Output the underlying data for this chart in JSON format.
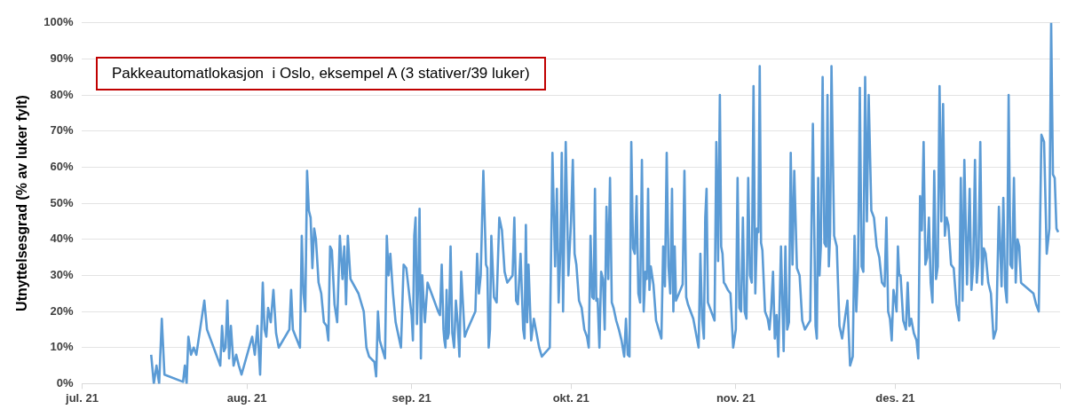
{
  "chart_data": {
    "type": "line",
    "ylabel": "Utnyttelsesgrad (% av luker fylt)",
    "annotations": [
      "Pakkeautomatlokasjon  i Oslo, eksempel A (3 stativer/39 luker)"
    ],
    "xlim": [
      "2021-07-01",
      "2022-01-01"
    ],
    "xticks": [
      {
        "value": "2021-07-01",
        "label": "jul. 21"
      },
      {
        "value": "2021-08-01",
        "label": "aug. 21"
      },
      {
        "value": "2021-09-01",
        "label": "sep. 21"
      },
      {
        "value": "2021-10-01",
        "label": "okt. 21"
      },
      {
        "value": "2021-11-01",
        "label": "nov. 21"
      },
      {
        "value": "2021-12-01",
        "label": "des. 21"
      },
      {
        "value": "2022-01-01",
        "label": null
      }
    ],
    "ylim": [
      0,
      100
    ],
    "yticks": [
      {
        "value": 0,
        "label": "0%"
      },
      {
        "value": 10,
        "label": "10%"
      },
      {
        "value": 20,
        "label": "20%"
      },
      {
        "value": 30,
        "label": "30%"
      },
      {
        "value": 40,
        "label": "40%"
      },
      {
        "value": 50,
        "label": "50%"
      },
      {
        "value": 60,
        "label": "60%"
      },
      {
        "value": 70,
        "label": "70%"
      },
      {
        "value": 80,
        "label": "80%"
      },
      {
        "value": 90,
        "label": "90%"
      },
      {
        "value": 100,
        "label": "100%"
      }
    ],
    "grid": "y",
    "line_style": "solid",
    "x": [
      "2021-07-14T00:00",
      "2021-07-14T12:00",
      "2021-07-15T00:00",
      "2021-07-15T12:00",
      "2021-07-16T00:00",
      "2021-07-16T12:00",
      "2021-07-20T00:00",
      "2021-07-20T08:00",
      "2021-07-20T16:00",
      "2021-07-21T00:00",
      "2021-07-21T12:00",
      "2021-07-22T00:00",
      "2021-07-22T12:00",
      "2021-07-24T00:00",
      "2021-07-24T12:00",
      "2021-07-27T00:00",
      "2021-07-27T08:00",
      "2021-07-27T16:00",
      "2021-07-28T00:00",
      "2021-07-28T08:00",
      "2021-07-28T16:00",
      "2021-07-29T00:00",
      "2021-07-29T12:00",
      "2021-07-30T00:00",
      "2021-07-30T12:00",
      "2021-07-31T00:00",
      "2021-08-02T00:00",
      "2021-08-02T12:00",
      "2021-08-03T00:00",
      "2021-08-03T12:00",
      "2021-08-04T00:00",
      "2021-08-04T08:00",
      "2021-08-04T16:00",
      "2021-08-05T00:00",
      "2021-08-05T12:00",
      "2021-08-06T00:00",
      "2021-08-06T12:00",
      "2021-08-07T00:00",
      "2021-08-09T00:00",
      "2021-08-09T08:00",
      "2021-08-09T16:00",
      "2021-08-11T00:00",
      "2021-08-11T08:00",
      "2021-08-11T16:00",
      "2021-08-12T00:00",
      "2021-08-12T08:00",
      "2021-08-12T16:00",
      "2021-08-13T00:00",
      "2021-08-13T08:00",
      "2021-08-13T16:00",
      "2021-08-14T00:00",
      "2021-08-14T12:00",
      "2021-08-15T00:00",
      "2021-08-15T12:00",
      "2021-08-16T00:00",
      "2021-08-16T08:00",
      "2021-08-16T16:00",
      "2021-08-17T00:00",
      "2021-08-17T12:00",
      "2021-08-18T00:00",
      "2021-08-18T12:00",
      "2021-08-19T00:00",
      "2021-08-19T08:00",
      "2021-08-19T16:00",
      "2021-08-20T00:00",
      "2021-08-20T12:00",
      "2021-08-22T00:00",
      "2021-08-23T00:00",
      "2021-08-23T12:00",
      "2021-08-24T00:00",
      "2021-08-25T00:00",
      "2021-08-25T08:00",
      "2021-08-25T16:00",
      "2021-08-26T00:00",
      "2021-08-27T00:00",
      "2021-08-27T08:00",
      "2021-08-27T16:00",
      "2021-08-28T00:00",
      "2021-08-28T12:00",
      "2021-08-29T00:00",
      "2021-08-30T00:00",
      "2021-08-30T12:00",
      "2021-08-31T00:00",
      "2021-09-01T00:00",
      "2021-09-01T06:00",
      "2021-09-01T12:00",
      "2021-09-01T18:00",
      "2021-09-02T00:00",
      "2021-09-02T06:00",
      "2021-09-02T12:00",
      "2021-09-02T18:00",
      "2021-09-03T00:00",
      "2021-09-03T12:00",
      "2021-09-04T00:00",
      "2021-09-06T00:00",
      "2021-09-06T08:00",
      "2021-09-06T16:00",
      "2021-09-07T00:00",
      "2021-09-07T04:00",
      "2021-09-07T09:00",
      "2021-09-07T14:00",
      "2021-09-07T19:00",
      "2021-09-08T00:00",
      "2021-09-08T08:00",
      "2021-09-08T16:00",
      "2021-09-09T00:00",
      "2021-09-09T08:00",
      "2021-09-09T16:00",
      "2021-09-10T00:00",
      "2021-09-10T08:00",
      "2021-09-10T16:00",
      "2021-09-11T00:00",
      "2021-09-11T12:00",
      "2021-09-13T00:00",
      "2021-09-13T08:00",
      "2021-09-13T16:00",
      "2021-09-14T00:00",
      "2021-09-14T12:00",
      "2021-09-15T00:00",
      "2021-09-15T06:00",
      "2021-09-15T12:00",
      "2021-09-15T18:00",
      "2021-09-16T00:00",
      "2021-09-16T12:00",
      "2021-09-17T00:00",
      "2021-09-17T12:00",
      "2021-09-18T00:00",
      "2021-09-18T12:00",
      "2021-09-19T00:00",
      "2021-09-20T00:00",
      "2021-09-20T08:00",
      "2021-09-20T16:00",
      "2021-09-21T00:00",
      "2021-09-21T12:00",
      "2021-09-22T00:00",
      "2021-09-22T06:00",
      "2021-09-22T12:00",
      "2021-09-22T18:00",
      "2021-09-23T00:00",
      "2021-09-23T12:00",
      "2021-09-24T00:00",
      "2021-09-25T00:00",
      "2021-09-25T12:00",
      "2021-09-27T00:00",
      "2021-09-27T12:00",
      "2021-09-28T00:00",
      "2021-09-28T08:00",
      "2021-09-28T16:00",
      "2021-09-29T00:00",
      "2021-09-29T06:00",
      "2021-09-29T12:00",
      "2021-09-29T18:00",
      "2021-09-30T00:00",
      "2021-09-30T12:00",
      "2021-10-01T00:00",
      "2021-10-01T08:00",
      "2021-10-01T16:00",
      "2021-10-02T00:00",
      "2021-10-02T12:00",
      "2021-10-03T00:00",
      "2021-10-03T12:00",
      "2021-10-04T00:00",
      "2021-10-04T08:00",
      "2021-10-04T16:00",
      "2021-10-05T00:00",
      "2021-10-05T06:00",
      "2021-10-05T12:00",
      "2021-10-05T18:00",
      "2021-10-06T00:00",
      "2021-10-06T08:00",
      "2021-10-06T16:00",
      "2021-10-07T00:00",
      "2021-10-07T08:00",
      "2021-10-07T16:00",
      "2021-10-08T00:00",
      "2021-10-08T08:00",
      "2021-10-08T16:00",
      "2021-10-09T00:00",
      "2021-10-09T12:00",
      "2021-10-10T00:00",
      "2021-10-10T12:00",
      "2021-10-11T00:00",
      "2021-10-11T08:00",
      "2021-10-11T16:00",
      "2021-10-12T00:00",
      "2021-10-12T08:00",
      "2021-10-12T16:00",
      "2021-10-13T00:00",
      "2021-10-13T08:00",
      "2021-10-13T16:00",
      "2021-10-14T00:00",
      "2021-10-14T08:00",
      "2021-10-14T16:00",
      "2021-10-15T00:00",
      "2021-10-15T06:00",
      "2021-10-15T12:00",
      "2021-10-15T18:00",
      "2021-10-16T00:00",
      "2021-10-16T12:00",
      "2021-10-17T00:00",
      "2021-10-18T00:00",
      "2021-10-18T08:00",
      "2021-10-18T16:00",
      "2021-10-19T00:00",
      "2021-10-19T08:00",
      "2021-10-19T16:00",
      "2021-10-20T00:00",
      "2021-10-20T06:00",
      "2021-10-20T12:00",
      "2021-10-20T18:00",
      "2021-10-22T00:00",
      "2021-10-22T08:00",
      "2021-10-22T16:00",
      "2021-10-23T00:00",
      "2021-10-24T00:00",
      "2021-10-25T00:00",
      "2021-10-25T08:00",
      "2021-10-25T16:00",
      "2021-10-26T00:00",
      "2021-10-26T06:00",
      "2021-10-26T12:00",
      "2021-10-26T18:00",
      "2021-10-28T00:00",
      "2021-10-28T08:00",
      "2021-10-28T16:00",
      "2021-10-29T00:00",
      "2021-10-29T06:00",
      "2021-10-29T12:00",
      "2021-10-29T18:00",
      "2021-10-30T00:00",
      "2021-10-30T12:00",
      "2021-10-31T00:00",
      "2021-10-31T12:00",
      "2021-11-01T00:00",
      "2021-11-01T08:00",
      "2021-11-01T16:00",
      "2021-11-02T00:00",
      "2021-11-02T08:00",
      "2021-11-02T16:00",
      "2021-11-03T00:00",
      "2021-11-03T08:00",
      "2021-11-03T16:00",
      "2021-11-04T00:00",
      "2021-11-04T08:00",
      "2021-11-04T16:00",
      "2021-11-05T00:00",
      "2021-11-05T06:00",
      "2021-11-05T12:00",
      "2021-11-05T18:00",
      "2021-11-06T00:00",
      "2021-11-06T12:00",
      "2021-11-07T00:00",
      "2021-11-07T08:00",
      "2021-11-07T16:00",
      "2021-11-08T00:00",
      "2021-11-08T08:00",
      "2021-11-08T16:00",
      "2021-11-09T00:00",
      "2021-11-09T12:00",
      "2021-11-10T00:00",
      "2021-11-10T08:00",
      "2021-11-10T16:00",
      "2021-11-11T00:00",
      "2021-11-11T08:00",
      "2021-11-11T16:00",
      "2021-11-12T00:00",
      "2021-11-12T12:00",
      "2021-11-13T00:00",
      "2021-11-13T12:00",
      "2021-11-14T00:00",
      "2021-11-15T00:00",
      "2021-11-15T12:00",
      "2021-11-16T00:00",
      "2021-11-16T06:00",
      "2021-11-16T12:00",
      "2021-11-16T18:00",
      "2021-11-17T00:00",
      "2021-11-17T08:00",
      "2021-11-17T16:00",
      "2021-11-18T00:00",
      "2021-11-18T06:00",
      "2021-11-18T12:00",
      "2021-11-18T18:00",
      "2021-11-19T00:00",
      "2021-11-19T12:00",
      "2021-11-20T00:00",
      "2021-11-20T12:00",
      "2021-11-21T00:00",
      "2021-11-22T00:00",
      "2021-11-22T12:00",
      "2021-11-23T00:00",
      "2021-11-23T08:00",
      "2021-11-23T16:00",
      "2021-11-24T00:00",
      "2021-11-24T08:00",
      "2021-11-24T16:00",
      "2021-11-25T00:00",
      "2021-11-25T08:00",
      "2021-11-25T16:00",
      "2021-11-26T00:00",
      "2021-11-26T12:00",
      "2021-11-27T00:00",
      "2021-11-27T12:00",
      "2021-11-28T00:00",
      "2021-11-28T12:00",
      "2021-11-29T00:00",
      "2021-11-29T08:00",
      "2021-11-29T16:00",
      "2021-11-30T00:00",
      "2021-11-30T08:00",
      "2021-11-30T16:00",
      "2021-12-01T00:00",
      "2021-12-01T06:00",
      "2021-12-01T12:00",
      "2021-12-01T18:00",
      "2021-12-02T00:00",
      "2021-12-02T12:00",
      "2021-12-03T00:00",
      "2021-12-03T08:00",
      "2021-12-03T16:00",
      "2021-12-04T00:00",
      "2021-12-04T12:00",
      "2021-12-05T00:00",
      "2021-12-05T08:00",
      "2021-12-05T16:00",
      "2021-12-06T00:00",
      "2021-12-06T08:00",
      "2021-12-06T16:00",
      "2021-12-07T00:00",
      "2021-12-07T08:00",
      "2021-12-07T16:00",
      "2021-12-08T00:00",
      "2021-12-08T08:00",
      "2021-12-08T16:00",
      "2021-12-09T00:00",
      "2021-12-09T08:00",
      "2021-12-09T16:00",
      "2021-12-10T00:00",
      "2021-12-10T08:00",
      "2021-12-10T16:00",
      "2021-12-11T00:00",
      "2021-12-11T12:00",
      "2021-12-12T00:00",
      "2021-12-12T12:00",
      "2021-12-13T00:00",
      "2021-12-13T08:00",
      "2021-12-13T16:00",
      "2021-12-14T00:00",
      "2021-12-14T12:00",
      "2021-12-15T00:00",
      "2021-12-15T08:00",
      "2021-12-15T16:00",
      "2021-12-16T00:00",
      "2021-12-16T08:00",
      "2021-12-16T16:00",
      "2021-12-17T00:00",
      "2021-12-17T08:00",
      "2021-12-17T16:00",
      "2021-12-18T00:00",
      "2021-12-18T12:00",
      "2021-12-19T00:00",
      "2021-12-19T12:00",
      "2021-12-20T00:00",
      "2021-12-20T12:00",
      "2021-12-21T00:00",
      "2021-12-21T08:00",
      "2021-12-21T16:00",
      "2021-12-22T00:00",
      "2021-12-22T08:00",
      "2021-12-22T16:00",
      "2021-12-23T00:00",
      "2021-12-23T08:00",
      "2021-12-23T16:00",
      "2021-12-24T00:00",
      "2021-12-24T08:00",
      "2021-12-24T16:00",
      "2021-12-25T00:00",
      "2021-12-27T00:00",
      "2021-12-27T12:00",
      "2021-12-28T00:00",
      "2021-12-28T12:00",
      "2021-12-29T00:00",
      "2021-12-29T12:00",
      "2021-12-30T00:00",
      "2021-12-30T08:00",
      "2021-12-30T16:00",
      "2021-12-31T00:00",
      "2021-12-31T08:00",
      "2021-12-31T16:00"
    ],
    "series": [
      {
        "color": "#5b9bd5",
        "values": [
          8,
          0,
          5,
          0,
          18,
          2.5,
          0.5,
          5,
          0,
          13,
          8,
          10,
          8,
          23,
          15,
          5,
          16,
          9,
          10,
          23,
          7,
          16,
          5,
          8,
          5,
          2.5,
          13,
          8,
          16,
          2.5,
          28,
          15,
          13,
          21,
          17,
          26,
          14,
          10,
          15,
          26,
          15,
          10,
          41,
          25,
          20,
          59,
          48,
          46,
          32,
          43,
          40,
          28,
          25,
          17,
          16,
          12,
          38,
          37,
          22,
          17,
          41,
          29,
          38,
          22,
          41,
          29,
          25,
          20,
          10,
          7.5,
          6,
          2,
          20,
          12,
          7,
          41,
          30,
          36,
          25,
          17,
          10,
          33,
          32,
          19,
          12,
          41,
          46,
          16.5,
          28,
          48.5,
          7,
          30,
          17,
          28,
          20,
          19,
          33,
          15,
          12,
          10,
          26,
          12.5,
          14,
          38,
          14,
          10,
          23,
          17,
          7.5,
          31,
          22,
          13,
          15,
          20,
          36,
          25,
          30,
          59,
          33,
          32,
          10,
          15,
          41,
          24,
          22.5,
          46,
          42.5,
          31,
          28,
          30,
          46,
          23,
          22,
          36,
          15,
          12.5,
          44,
          17,
          33,
          12,
          18,
          10,
          7.5,
          10,
          64,
          32.5,
          54,
          22.5,
          37.5,
          64,
          20,
          43,
          67,
          30,
          45,
          62,
          36,
          33,
          23,
          21,
          15,
          13,
          10,
          41,
          24,
          23.5,
          54,
          23,
          23.5,
          10,
          31,
          29,
          15,
          49,
          29,
          57,
          22.5,
          21,
          17.5,
          15,
          12,
          7.5,
          18,
          8,
          7.5,
          67,
          37.5,
          36,
          52,
          25,
          22.5,
          62,
          20,
          31,
          29,
          54,
          26,
          32.5,
          27.5,
          17.5,
          12.5,
          38,
          27,
          64,
          32.5,
          25,
          54,
          20,
          38,
          23,
          27.5,
          59,
          24,
          22,
          18,
          10,
          36,
          18,
          12.5,
          46,
          54,
          22.5,
          17.5,
          67,
          34,
          80,
          38,
          36,
          28,
          27.5,
          26,
          25,
          10,
          15,
          57,
          21,
          20,
          46,
          20,
          18,
          57,
          30,
          28,
          82.5,
          25,
          43,
          42,
          88,
          39,
          37,
          20,
          18,
          15,
          21,
          31,
          12.5,
          19,
          7.5,
          38,
          9,
          38,
          15,
          17,
          64,
          33,
          59,
          32,
          30,
          17.5,
          15,
          17.5,
          72,
          16,
          12.5,
          57,
          30,
          38,
          85,
          39,
          38,
          80,
          32.5,
          42,
          88,
          41,
          38,
          16,
          12.5,
          23,
          5,
          7.5,
          41,
          20,
          32,
          82,
          32.5,
          31,
          85,
          45,
          80,
          48,
          46,
          38,
          35,
          28,
          27,
          46,
          20,
          18,
          12,
          26,
          23,
          20,
          38,
          30,
          30,
          17.5,
          15,
          28,
          16,
          18,
          14,
          12,
          7,
          52,
          42.5,
          67,
          33,
          35,
          46,
          28,
          22.5,
          59,
          29,
          32.5,
          82.5,
          45,
          77.5,
          41,
          46,
          44,
          33,
          32,
          22,
          17.5,
          57,
          23,
          62,
          27.5,
          54,
          26,
          32.5,
          62,
          28,
          35,
          67,
          27.5,
          37.5,
          36,
          28,
          25,
          12.5,
          15,
          49,
          27,
          51.5,
          27,
          22.5,
          80,
          33,
          32,
          57,
          28,
          40,
          38,
          28,
          27.5,
          25,
          22,
          20,
          69,
          67,
          36,
          43,
          100,
          58,
          57,
          43,
          42
        ]
      }
    ]
  }
}
